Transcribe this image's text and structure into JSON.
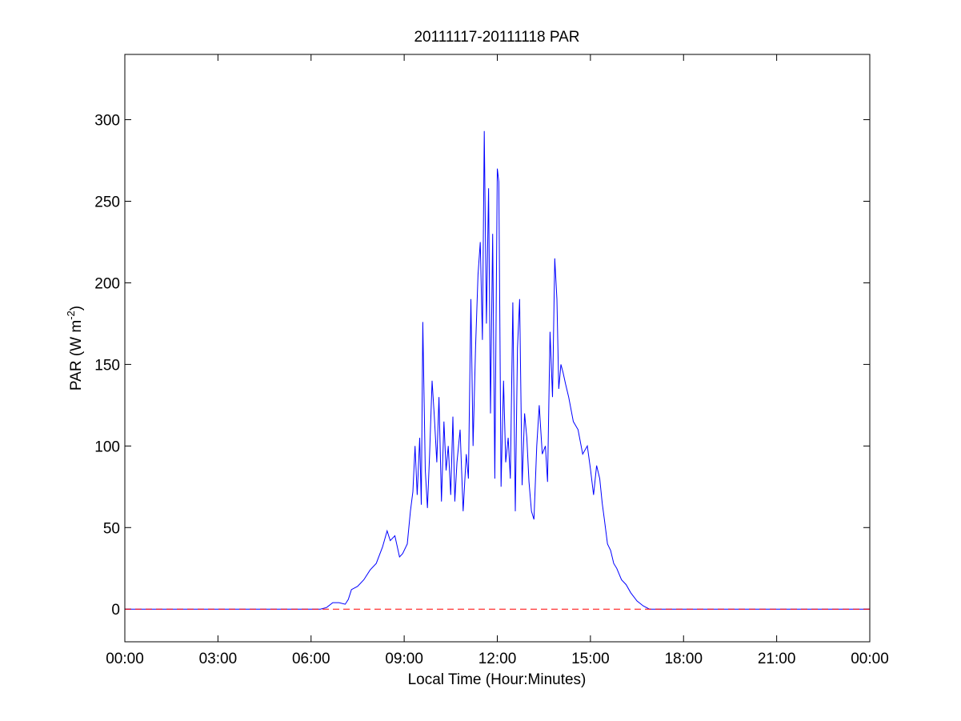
{
  "chart_data": {
    "type": "line",
    "title": "20111117-20111118 PAR",
    "xlabel": "Local Time (Hour:Minutes)",
    "ylabel": {
      "main": "PAR (W m",
      "superscript": "-2",
      "close": ")"
    },
    "xlim": [
      0,
      24
    ],
    "ylim": [
      -20,
      340
    ],
    "x_units": "hours (local time)",
    "x_ticks": [
      {
        "value": 0,
        "label": "00:00"
      },
      {
        "value": 3,
        "label": "03:00"
      },
      {
        "value": 6,
        "label": "06:00"
      },
      {
        "value": 9,
        "label": "09:00"
      },
      {
        "value": 12,
        "label": "12:00"
      },
      {
        "value": 15,
        "label": "15:00"
      },
      {
        "value": 18,
        "label": "18:00"
      },
      {
        "value": 21,
        "label": "21:00"
      },
      {
        "value": 24,
        "label": "00:00"
      }
    ],
    "y_ticks": [
      {
        "value": 0,
        "label": "0"
      },
      {
        "value": 50,
        "label": "50"
      },
      {
        "value": 100,
        "label": "100"
      },
      {
        "value": 150,
        "label": "150"
      },
      {
        "value": 200,
        "label": "200"
      },
      {
        "value": 250,
        "label": "250"
      },
      {
        "value": 300,
        "label": "300"
      }
    ],
    "grid": false,
    "legend": "none",
    "series": [
      {
        "color": "#0000ff",
        "style": "solid",
        "x": [
          0,
          6.3,
          6.5,
          6.7,
          6.9,
          7.1,
          7.2,
          7.3,
          7.5,
          7.7,
          7.9,
          8.1,
          8.3,
          8.45,
          8.55,
          8.7,
          8.85,
          8.95,
          9.1,
          9.2,
          9.28,
          9.35,
          9.42,
          9.5,
          9.55,
          9.6,
          9.68,
          9.75,
          9.82,
          9.9,
          9.97,
          10.05,
          10.12,
          10.2,
          10.28,
          10.35,
          10.42,
          10.5,
          10.57,
          10.63,
          10.7,
          10.8,
          10.9,
          11.0,
          11.07,
          11.15,
          11.22,
          11.3,
          11.38,
          11.45,
          11.52,
          11.58,
          11.65,
          11.72,
          11.78,
          11.85,
          11.92,
          12.0,
          12.05,
          12.12,
          12.2,
          12.27,
          12.35,
          12.42,
          12.5,
          12.58,
          12.65,
          12.72,
          12.8,
          12.88,
          12.95,
          13.02,
          13.1,
          13.18,
          13.27,
          13.35,
          13.45,
          13.55,
          13.62,
          13.7,
          13.78,
          13.85,
          13.92,
          13.98,
          14.05,
          14.12,
          14.2,
          14.3,
          14.45,
          14.6,
          14.75,
          14.9,
          15.0,
          15.1,
          15.2,
          15.3,
          15.38,
          15.45,
          15.55,
          15.65,
          15.75,
          15.85,
          16.0,
          16.15,
          16.3,
          16.5,
          16.7,
          16.9,
          17.1,
          17.2,
          24
        ],
        "y": [
          0,
          0,
          1,
          4,
          4,
          3,
          6,
          12,
          14,
          18,
          24,
          28,
          38,
          48,
          42,
          45,
          32,
          34,
          40,
          60,
          72,
          100,
          70,
          105,
          64,
          176,
          85,
          62,
          95,
          140,
          118,
          90,
          130,
          66,
          115,
          85,
          100,
          70,
          118,
          66,
          90,
          110,
          60,
          95,
          80,
          190,
          100,
          160,
          205,
          225,
          165,
          293,
          175,
          258,
          120,
          230,
          80,
          270,
          262,
          75,
          140,
          90,
          105,
          80,
          188,
          60,
          160,
          190,
          76,
          120,
          105,
          78,
          60,
          55,
          100,
          125,
          95,
          100,
          78,
          170,
          130,
          215,
          190,
          135,
          150,
          145,
          138,
          130,
          115,
          110,
          95,
          100,
          86,
          70,
          88,
          80,
          65,
          55,
          40,
          36,
          28,
          25,
          18,
          15,
          10,
          5,
          2,
          0,
          0,
          0,
          0
        ]
      },
      {
        "color": "#ff0000",
        "style": "dashed",
        "x": [
          0,
          24
        ],
        "y": [
          0,
          0
        ]
      }
    ]
  }
}
